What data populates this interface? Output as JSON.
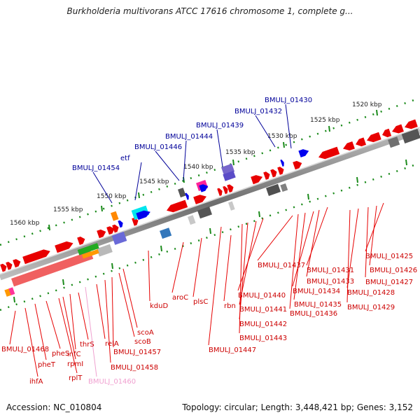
{
  "title": "Burkholderia multivorans ATCC 17616 chromosome 1, complete g...",
  "accession": "Accession: NC_010804",
  "topology": "Topology: circular; Length: 3,448,421 bp; Genes: 3,152",
  "colors": {
    "backbone": "#8c8c8c",
    "tick": "#1a8a1a",
    "gene_fwd": "#e60000",
    "gene_rev": "#e60000",
    "label_top": "#000099",
    "label_bottom": "#cc0000",
    "label_muted": "#f0a0d0"
  },
  "kbp_labels": [
    "1520 kbp",
    "1525 kbp",
    "1530 kbp",
    "1535 kbp",
    "1540 kbp",
    "1545 kbp",
    "1550 kbp",
    "1555 kbp",
    "1560 kbp"
  ],
  "top_labels": [
    "BMULJ_01430",
    "BMULJ_01432",
    "BMULJ_01439",
    "BMULJ_01444",
    "BMULJ_01446",
    "etf",
    "BMULJ_01454"
  ],
  "bottom_labels": [
    "BMULJ_01425",
    "BMULJ_01426",
    "BMULJ_01427",
    "BMULJ_01428",
    "BMULJ_01429",
    "BMULJ_01431",
    "BMULJ_01433",
    "BMULJ_01434",
    "BMULJ_01435",
    "BMULJ_01436",
    "BMULJ_01437",
    "BMULJ_01440",
    "BMULJ_01441",
    "BMULJ_01442",
    "BMULJ_01443",
    "BMULJ_01447",
    "rbn",
    "plsC",
    "aroC",
    "kduD",
    "scoA",
    "scoB",
    "BMULJ_01457",
    "BMULJ_01458",
    "relA",
    "BMULJ_01460",
    "thrS",
    "infC",
    "rpmI",
    "rplT",
    "pheS",
    "pheT",
    "ihfA",
    "BMULJ_01468"
  ]
}
